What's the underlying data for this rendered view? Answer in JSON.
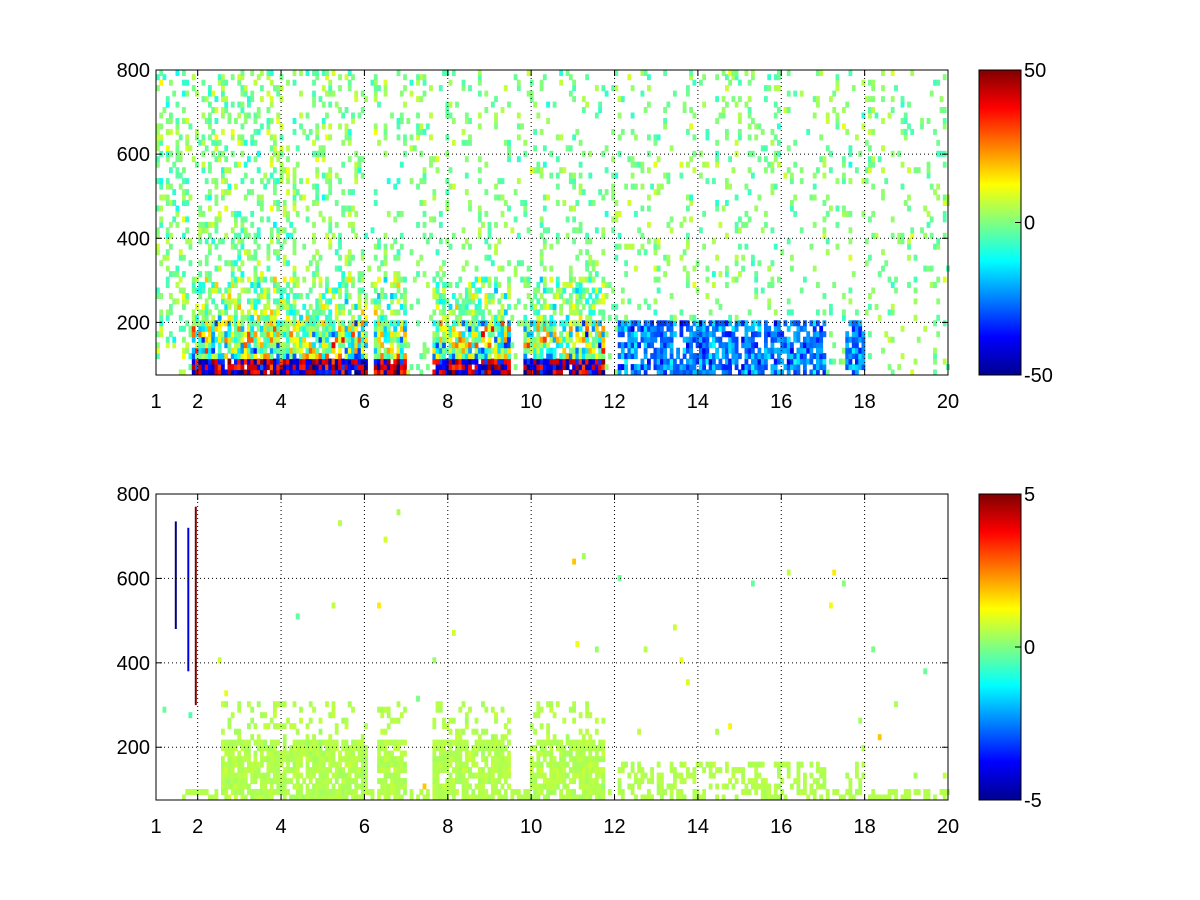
{
  "chart_data": [
    {
      "type": "heatmap",
      "title": "",
      "xlabel": "",
      "ylabel": "",
      "xlim": [
        1,
        20
      ],
      "ylim": [
        75,
        800
      ],
      "xticks": [
        "1",
        "2",
        "4",
        "6",
        "8",
        "10",
        "12",
        "14",
        "16",
        "18",
        "20"
      ],
      "xtick_values": [
        1,
        2,
        4,
        6,
        8,
        10,
        12,
        14,
        16,
        18,
        20
      ],
      "yticks": [
        "200",
        "400",
        "600",
        "800"
      ],
      "ytick_values": [
        200,
        400,
        600,
        800
      ],
      "grid": true,
      "colormap": "jet",
      "clim": [
        -50,
        50
      ],
      "colorbar_ticks": [
        "50",
        "0",
        "-50"
      ],
      "colorbar_tick_values": [
        50,
        0,
        -50
      ],
      "blank_color": "#ffffff",
      "dense_region": {
        "x": [
          1.7,
          11.7
        ],
        "y": [
          75,
          300
        ]
      },
      "strong_negative_band_y": [
        75,
        200
      ],
      "strong_positive_band_y": [
        75,
        110
      ]
    },
    {
      "type": "heatmap",
      "title": "",
      "xlabel": "",
      "ylabel": "",
      "xlim": [
        1,
        20
      ],
      "ylim": [
        75,
        800
      ],
      "xticks": [
        "1",
        "2",
        "4",
        "6",
        "8",
        "10",
        "12",
        "14",
        "16",
        "18",
        "20"
      ],
      "xtick_values": [
        1,
        2,
        4,
        6,
        8,
        10,
        12,
        14,
        16,
        18,
        20
      ],
      "yticks": [
        "200",
        "400",
        "600",
        "800"
      ],
      "ytick_values": [
        200,
        400,
        600,
        800
      ],
      "grid": true,
      "colormap": "jet",
      "clim": [
        -5,
        5
      ],
      "colorbar_ticks": [
        "5",
        "0",
        "-5"
      ],
      "colorbar_tick_values": [
        5,
        0,
        -5
      ],
      "blank_color": "#ffffff",
      "dense_region": {
        "x": [
          2.5,
          11.7
        ],
        "y": [
          75,
          220
        ]
      },
      "typical_value": 0.5
    }
  ]
}
